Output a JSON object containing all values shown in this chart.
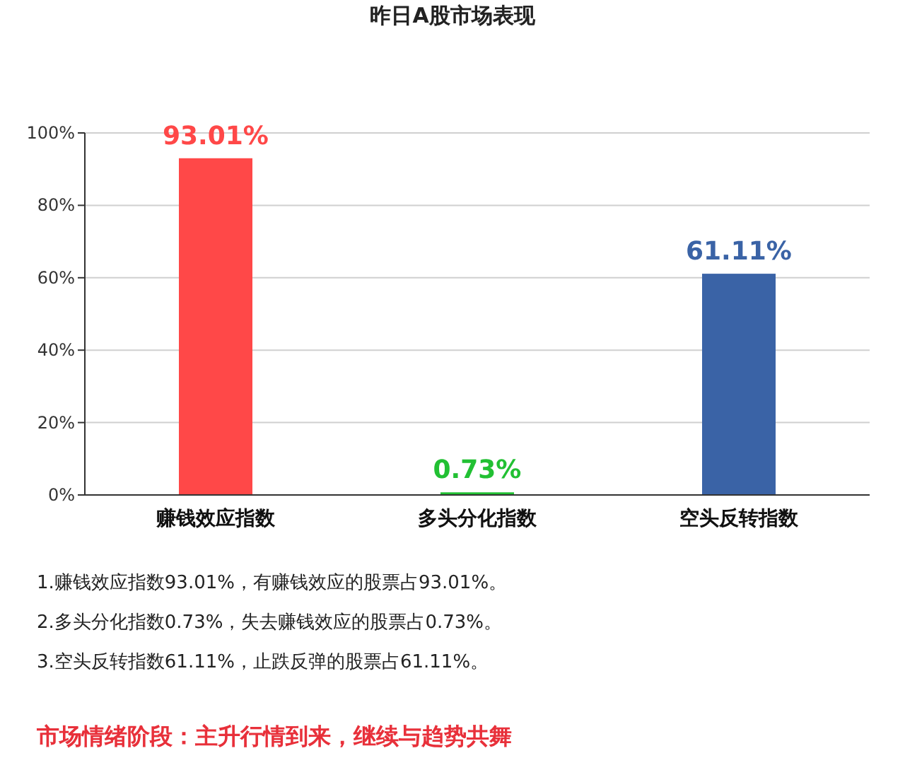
{
  "chart_data": {
    "type": "bar",
    "title": "昨日A股市场表现",
    "categories": [
      "赚钱效应指数",
      "多头分化指数",
      "空头反转指数"
    ],
    "values": [
      93.01,
      0.73,
      61.11
    ],
    "colors": [
      "#ff4848",
      "#22c033",
      "#3a63a6"
    ],
    "value_labels": [
      "93.01%",
      "0.73%",
      "61.11%"
    ],
    "ylim": [
      0,
      100
    ],
    "yticks": [
      {
        "value": 0,
        "label": "0%"
      },
      {
        "value": 20,
        "label": "20%"
      },
      {
        "value": 40,
        "label": "40%"
      },
      {
        "value": 60,
        "label": "60%"
      },
      {
        "value": 80,
        "label": "80%"
      },
      {
        "value": 100,
        "label": "100%"
      }
    ],
    "grid": "y",
    "annotations": [
      "1.赚钱效应指数93.01%，有赚钱效应的股票占93.01%。",
      "2.多头分化指数0.73%，失去赚钱效应的股票占0.73%。",
      "3.空头反转指数61.11%，止跌反弹的股票占61.11%。",
      "市场情绪阶段：主升行情到来，继续与趋势共舞"
    ]
  }
}
